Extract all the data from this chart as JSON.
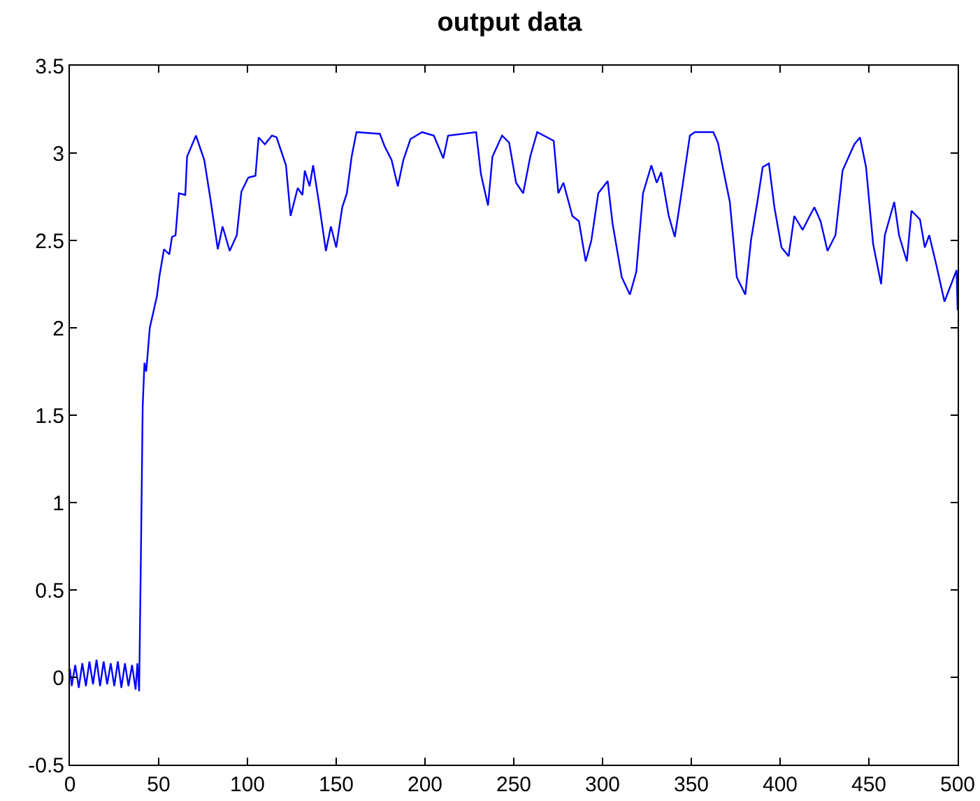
{
  "chart_data": {
    "type": "line",
    "title": "output data",
    "xlim": [
      0,
      500
    ],
    "ylim": [
      -0.5,
      3.5
    ],
    "xticks": [
      0,
      50,
      100,
      150,
      200,
      250,
      300,
      350,
      400,
      450,
      500
    ],
    "yticks": [
      -0.5,
      0,
      0.5,
      1,
      1.5,
      2,
      2.5,
      3,
      3.5
    ],
    "grid": false,
    "marker": "none",
    "line_style": "solid",
    "series": [
      {
        "color": "#0000ff",
        "x": [
          0,
          1,
          3,
          5,
          7,
          9,
          11,
          13,
          15,
          17,
          19,
          21,
          23,
          25,
          27,
          29,
          31,
          33,
          35,
          37,
          38,
          39,
          40,
          41,
          42,
          43,
          45,
          49,
          50.5,
          53,
          56,
          57.5,
          59.5,
          61.4,
          65,
          66,
          71,
          75.7,
          79.4,
          83.3,
          86,
          90,
          94,
          96.6,
          100.5,
          104.5,
          106.3,
          109.8,
          113.8,
          116.4,
          121.7,
          124.3,
          128.3,
          131,
          132.3,
          135,
          137,
          140.2,
          144.2,
          147,
          150,
          153.4,
          156,
          158.7,
          161.4,
          174.6,
          177.2,
          181.2,
          184.7,
          187.8,
          191.8,
          198.4,
          205,
          210.3,
          213,
          228.8,
          231.5,
          235.5,
          238,
          243.4,
          247.4,
          251.3,
          255.3,
          259.3,
          263.2,
          272.5,
          275.1,
          278,
          283,
          286.7,
          290.5,
          293.7,
          297.6,
          302.9,
          305.6,
          310.8,
          315.4,
          319,
          322.8,
          327.5,
          330.5,
          333,
          337.3,
          340.7,
          344,
          349.2,
          352,
          362.4,
          365,
          367.7,
          371.7,
          375.6,
          380.4,
          383.6,
          387.5,
          390.2,
          393.7,
          396.8,
          400.8,
          404.8,
          408,
          412.7,
          416.7,
          419.3,
          422.8,
          426.7,
          431.2,
          435.2,
          441.8,
          445,
          448.4,
          452.4,
          456.9,
          459,
          464.3,
          467,
          471.4,
          474,
          478.8,
          481.5,
          484,
          488,
          492.6,
          496,
          499.4,
          500
        ],
        "values": [
          0.05,
          -0.05,
          0.07,
          -0.06,
          0.08,
          -0.05,
          0.09,
          -0.04,
          0.1,
          -0.05,
          0.09,
          -0.04,
          0.08,
          -0.05,
          0.09,
          -0.06,
          0.08,
          -0.05,
          0.07,
          -0.07,
          0.08,
          -0.08,
          0.7,
          1.55,
          1.8,
          1.75,
          2.0,
          2.18,
          2.3,
          2.45,
          2.42,
          2.52,
          2.53,
          2.77,
          2.76,
          2.98,
          3.1,
          2.96,
          2.72,
          2.45,
          2.58,
          2.44,
          2.53,
          2.78,
          2.86,
          2.87,
          3.09,
          3.05,
          3.1,
          3.09,
          2.93,
          2.64,
          2.8,
          2.76,
          2.9,
          2.81,
          2.93,
          2.72,
          2.44,
          2.58,
          2.46,
          2.69,
          2.77,
          2.98,
          3.12,
          3.11,
          3.04,
          2.96,
          2.81,
          2.96,
          3.08,
          3.12,
          3.1,
          2.97,
          3.1,
          3.12,
          2.88,
          2.7,
          2.98,
          3.1,
          3.06,
          2.83,
          2.77,
          2.98,
          3.12,
          3.07,
          2.77,
          2.83,
          2.64,
          2.61,
          2.38,
          2.5,
          2.77,
          2.84,
          2.6,
          2.29,
          2.19,
          2.32,
          2.77,
          2.93,
          2.83,
          2.89,
          2.64,
          2.52,
          2.74,
          3.1,
          3.12,
          3.12,
          3.06,
          2.92,
          2.72,
          2.29,
          2.19,
          2.5,
          2.74,
          2.92,
          2.94,
          2.69,
          2.46,
          2.41,
          2.64,
          2.56,
          2.64,
          2.69,
          2.61,
          2.44,
          2.53,
          2.9,
          3.05,
          3.09,
          2.92,
          2.48,
          2.25,
          2.53,
          2.72,
          2.53,
          2.38,
          2.67,
          2.62,
          2.46,
          2.53,
          2.36,
          2.15,
          2.24,
          2.33,
          2.1
        ]
      }
    ]
  }
}
